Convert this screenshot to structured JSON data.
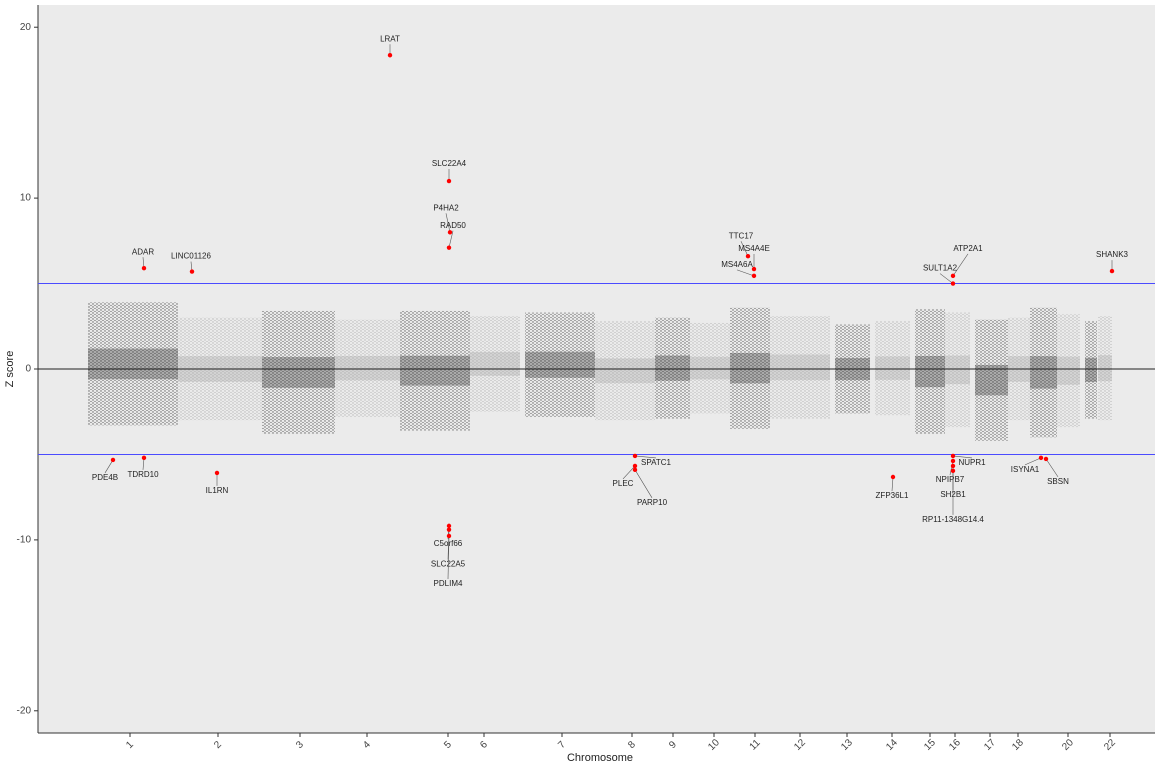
{
  "chart_data": {
    "type": "manhattan",
    "xlabel": "Chromosome",
    "ylabel": "Z score",
    "xlim": [
      0,
      1117
    ],
    "ylim": [
      -21.3,
      21.3
    ],
    "yticks": [
      -20,
      -10,
      0,
      10,
      20
    ],
    "xticks": [
      {
        "value": 92,
        "label": "1"
      },
      {
        "value": 180,
        "label": "2"
      },
      {
        "value": 262,
        "label": "3"
      },
      {
        "value": 329,
        "label": "4"
      },
      {
        "value": 410,
        "label": "5"
      },
      {
        "value": 446,
        "label": "6"
      },
      {
        "value": 524,
        "label": "7"
      },
      {
        "value": 594,
        "label": "8"
      },
      {
        "value": 635,
        "label": "9"
      },
      {
        "value": 676,
        "label": "10"
      },
      {
        "value": 717,
        "label": "11"
      },
      {
        "value": 762,
        "label": "12"
      },
      {
        "value": 809,
        "label": "13"
      },
      {
        "value": 854,
        "label": "14"
      },
      {
        "value": 892,
        "label": "15"
      },
      {
        "value": 917,
        "label": "16"
      },
      {
        "value": 952,
        "label": "17"
      },
      {
        "value": 980,
        "label": "18"
      },
      {
        "value": 1030,
        "label": "20"
      },
      {
        "value": 1072,
        "label": "22"
      }
    ],
    "zero_line": true,
    "hlines": [
      5,
      -5
    ],
    "hline_color": "#4b4bff",
    "background": {
      "colors": [
        "#333333",
        "#a6a6a6"
      ],
      "x0": [
        50,
        140,
        224,
        297,
        362,
        432,
        487,
        557,
        617,
        652,
        692,
        732,
        797,
        837,
        877,
        907,
        937,
        970,
        992,
        1019,
        1047,
        1060
      ],
      "x1": [
        140,
        224,
        297,
        362,
        432,
        482,
        557,
        617,
        652,
        692,
        732,
        792,
        832,
        872,
        907,
        932,
        970,
        992,
        1019,
        1042,
        1059,
        1074
      ],
      "ymin": [
        -3.3,
        -3.0,
        -3.8,
        -2.8,
        -3.6,
        -2.5,
        -2.8,
        -3.0,
        -2.9,
        -2.6,
        -3.5,
        -2.9,
        -2.6,
        -2.7,
        -3.8,
        -3.4,
        -4.2,
        -3.0,
        -4.0,
        -3.4,
        -2.9,
        -3.0
      ],
      "ymax": [
        3.9,
        3.0,
        3.4,
        2.9,
        3.4,
        3.1,
        3.3,
        2.8,
        3.0,
        2.7,
        3.6,
        3.1,
        2.6,
        2.8,
        3.5,
        3.3,
        2.9,
        3.0,
        3.6,
        3.2,
        2.8,
        3.1
      ]
    },
    "hits": {
      "color": "#ff0000",
      "names": [
        "LRAT",
        "SLC22A4",
        "P4HA2",
        "RAD50",
        "ADAR",
        "LINC01126",
        "TTC17",
        "MS4A4E",
        "MS4A6A",
        "ATP2A1",
        "SULT1A2",
        "SHANK3",
        "PDE4B",
        "TDRD10",
        "IL1RN",
        "C5orf66",
        "SLC22A5",
        "PDLIM4",
        "SPATC1",
        "PLEC",
        "PARP10",
        "ZFP36L1",
        "NUPR1",
        "NPIPB7",
        "SH2B1",
        "RP11-1348G14.4",
        "ISYNA1",
        "SBSN"
      ],
      "x": [
        352,
        411,
        412,
        411,
        106,
        154,
        710,
        716,
        716,
        915,
        915,
        1074,
        75,
        106,
        179,
        411,
        411,
        411,
        597,
        597,
        597,
        855,
        915,
        915,
        915,
        915,
        1003,
        1008
      ],
      "values": [
        18.36,
        11.0,
        8.0,
        7.1,
        5.9,
        5.7,
        6.6,
        5.85,
        5.45,
        5.45,
        5.0,
        5.73,
        -5.32,
        -5.2,
        -6.08,
        -9.18,
        -9.4,
        -9.77,
        -5.09,
        -5.67,
        -5.9,
        -6.32,
        -5.09,
        -5.38,
        -5.67,
        -5.96,
        -5.2,
        -5.26
      ]
    }
  }
}
